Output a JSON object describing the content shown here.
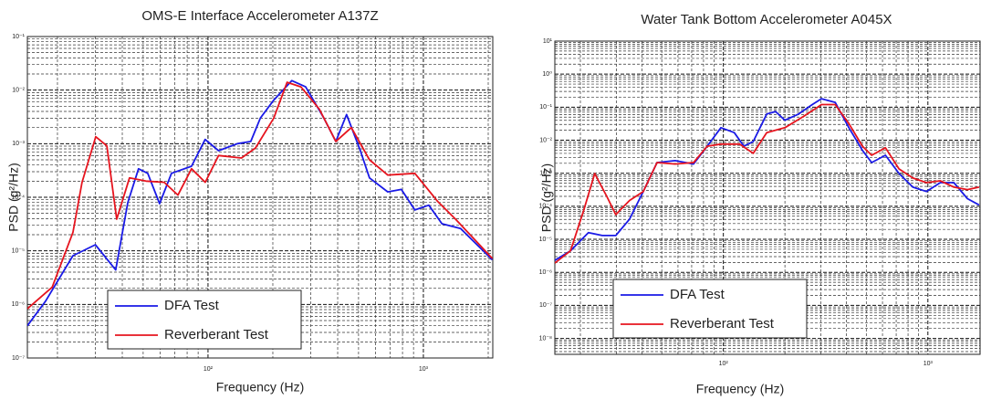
{
  "chart_data": [
    {
      "type": "line",
      "title": "OMS-E Interface Accelerometer A137Z",
      "xlabel": "Frequency  (Hz)",
      "ylabel": "PSD (g²/Hz)",
      "xscale": "log",
      "yscale": "log",
      "grid": true,
      "minor_grid": true,
      "legend_loc": "lower left",
      "xlim": [
        14.5,
        2100
      ],
      "ylim": [
        1e-07,
        0.1
      ],
      "xticks": [
        {
          "value": 100,
          "label": "10²"
        },
        {
          "value": 1000,
          "label": "10³"
        }
      ],
      "yticks": [
        {
          "value": 1e-07,
          "label": "10⁻⁷"
        },
        {
          "value": 1e-06,
          "label": "10⁻⁶"
        },
        {
          "value": 1e-05,
          "label": "10⁻⁵"
        },
        {
          "value": 0.0001,
          "label": "10⁻⁴"
        },
        {
          "value": 0.001,
          "label": "10⁻³"
        },
        {
          "value": 0.01,
          "label": "10⁻²"
        },
        {
          "value": 0.1,
          "label": "10⁻¹"
        }
      ],
      "series": [
        {
          "name": "DFA Test",
          "color": "#1a1ae6",
          "x": [
            14.5,
            17.6,
            23.6,
            30,
            37.3,
            42.4,
            47.6,
            52.5,
            59.6,
            67.7,
            83.9,
            97,
            112,
            137,
            158,
            175,
            202,
            245,
            284,
            345,
            392,
            440,
            510,
            562,
            683,
            790,
            913,
            1060,
            1220,
            1490,
            2090
          ],
          "values": [
            4e-07,
            1.15e-06,
            8.1e-06,
            1.3e-05,
            4.4e-06,
            7.9e-05,
            0.00034,
            0.00028,
            7.6e-05,
            0.00028,
            0.00038,
            0.0012,
            0.00074,
            0.001,
            0.0011,
            0.003,
            0.0065,
            0.015,
            0.0115,
            0.003,
            0.0011,
            0.0035,
            0.00074,
            0.00023,
            0.000126,
            0.00014,
            5.8e-05,
            7.1e-05,
            3.2e-05,
            2.6e-05,
            6.8e-06
          ]
        },
        {
          "name": "Reverberant Test",
          "color": "#e6141e",
          "x": [
            14.5,
            18.9,
            23.6,
            26,
            30.1,
            33.9,
            37.7,
            43.2,
            51.5,
            62.6,
            72.5,
            83.9,
            97.1,
            112,
            143,
            166,
            202,
            233,
            270,
            329,
            392,
            463,
            562,
            683,
            913,
            1160,
            1410,
            2090
          ],
          "values": [
            8.3e-07,
            2.1e-06,
            2.2e-05,
            0.00019,
            0.00135,
            0.00091,
            3.9e-05,
            0.00023,
            0.0002,
            0.00019,
            0.00011,
            0.00034,
            0.00019,
            0.0006,
            0.00054,
            0.00083,
            0.003,
            0.014,
            0.0115,
            0.0044,
            0.0011,
            0.002,
            0.0005,
            0.00026,
            0.00028,
            8.5e-05,
            3.9e-05,
            7.2e-06
          ]
        }
      ]
    },
    {
      "type": "line",
      "title": "Water Tank Bottom Accelerometer A045X",
      "xlabel": "Frequency  (Hz)",
      "ylabel": "PSD (g²/Hz)",
      "xscale": "log",
      "yscale": "log",
      "grid": true,
      "minor_grid": true,
      "legend_loc": "lower left",
      "xlim": [
        15,
        1800
      ],
      "ylim": [
        3.3e-09,
        10
      ],
      "xticks": [
        {
          "value": 100,
          "label": "10²"
        },
        {
          "value": 1000,
          "label": "10³"
        }
      ],
      "yticks": [
        {
          "value": 1e-08,
          "label": "10⁻⁸"
        },
        {
          "value": 1e-07,
          "label": "10⁻⁷"
        },
        {
          "value": 1e-06,
          "label": "10⁻⁶"
        },
        {
          "value": 1e-05,
          "label": "10⁻⁵"
        },
        {
          "value": 0.0001,
          "label": "10⁻⁴"
        },
        {
          "value": 0.001,
          "label": "10⁻³"
        },
        {
          "value": 0.01,
          "label": "10⁻²"
        },
        {
          "value": 0.1,
          "label": "10⁻¹"
        },
        {
          "value": 1,
          "label": "10⁰"
        },
        {
          "value": 10,
          "label": "10¹"
        }
      ],
      "series": [
        {
          "name": "DFA Test",
          "color": "#1a1ae6",
          "x": [
            15,
            17.9,
            21.9,
            25.6,
            29.8,
            34.8,
            40.6,
            47.4,
            58.1,
            71.5,
            83.4,
            97.3,
            113,
            126,
            140,
            163,
            180,
            200,
            233,
            272,
            302,
            352,
            411,
            479,
            531,
            620,
            723,
            844,
            984,
            1150,
            1340,
            1560,
            1780
          ],
          "values": [
            2.3e-06,
            4.5e-06,
            1.6e-05,
            1.3e-05,
            1.3e-05,
            4.1e-05,
            0.00028,
            0.0021,
            0.0024,
            0.0019,
            0.0066,
            0.024,
            0.017,
            0.0066,
            0.0091,
            0.062,
            0.074,
            0.04,
            0.062,
            0.12,
            0.18,
            0.14,
            0.024,
            0.0049,
            0.0021,
            0.0035,
            0.00098,
            0.00038,
            0.00028,
            0.00052,
            0.00052,
            0.00017,
            0.00011
          ]
        },
        {
          "name": "Reverberant Test",
          "color": "#e6141e",
          "x": [
            15,
            17.9,
            20.8,
            23.5,
            26.9,
            29.8,
            34.8,
            40.6,
            47.4,
            58.1,
            71.5,
            83.4,
            97.3,
            120,
            140,
            163,
            200,
            245,
            302,
            352,
            411,
            479,
            531,
            620,
            723,
            844,
            984,
            1150,
            1340,
            1560,
            1780
          ],
          "values": [
            1.9e-06,
            4.5e-06,
            7.8e-05,
            0.00098,
            0.0002,
            5.6e-05,
            0.00015,
            0.00028,
            0.0021,
            0.0019,
            0.0021,
            0.0066,
            0.0076,
            0.0076,
            0.004,
            0.017,
            0.024,
            0.051,
            0.12,
            0.12,
            0.032,
            0.0066,
            0.0035,
            0.0059,
            0.00135,
            0.00072,
            0.00052,
            0.00059,
            0.00038,
            0.00032,
            0.00038
          ]
        }
      ]
    }
  ]
}
